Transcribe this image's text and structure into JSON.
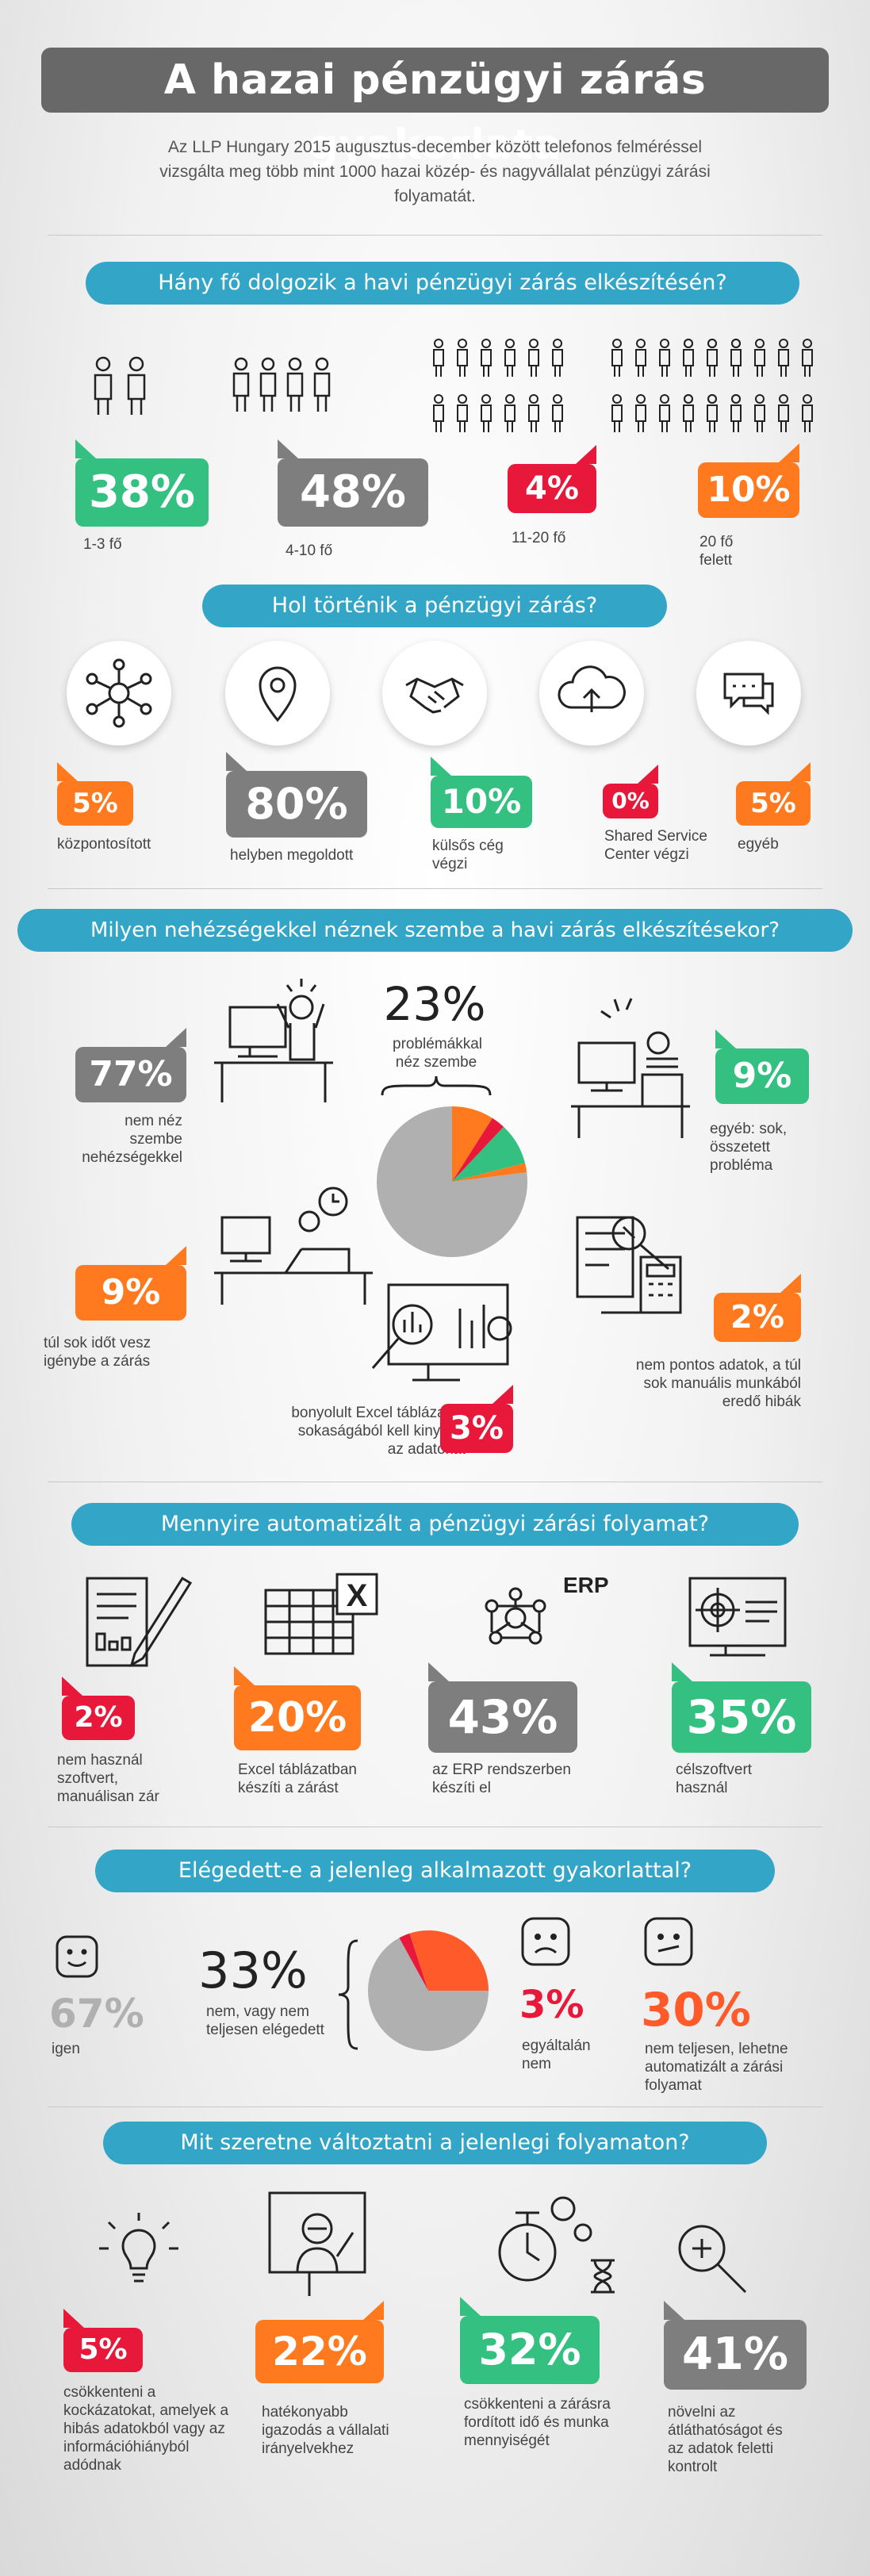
{
  "title": "A hazai pénzügyi zárás gyakorlata",
  "intro": "Az LLP Hungary 2015 augusztus-december között telefonos felméréssel vizsgálta meg több mint 1000 hazai közép- és nagyvállalat pénzügyi zárási folyamatát.",
  "colors": {
    "green": "#33c080",
    "gray": "#7e7e7e",
    "red": "#e8183a",
    "orange": "#ff7a1e",
    "blue": "#33a6c8",
    "title": "#686868"
  },
  "s1": {
    "q": "Hány fő dolgozik a havi pénzügyi zárás elkészítésén?",
    "items": [
      {
        "pct": "38%",
        "label": "1-3 fő"
      },
      {
        "pct": "48%",
        "label": "4-10 fő"
      },
      {
        "pct": "4%",
        "label": "11-20 fő"
      },
      {
        "pct": "10%",
        "label": "20 fő felett"
      }
    ]
  },
  "s2": {
    "q": "Hol történik a pénzügyi zárás?",
    "items": [
      {
        "pct": "5%",
        "label": "központosított",
        "icon": "network-icon"
      },
      {
        "pct": "80%",
        "label": "helyben megoldott",
        "icon": "location-pin-icon"
      },
      {
        "pct": "10%",
        "label": "külsős cég végzi",
        "icon": "handshake-icon"
      },
      {
        "pct": "0%",
        "label": "Shared Service Center végzi",
        "icon": "cloud-upload-icon"
      },
      {
        "pct": "5%",
        "label": "egyéb",
        "icon": "chat-icon"
      }
    ]
  },
  "s3": {
    "q": "Milyen nehézségekkel néznek szembe a havi zárás elkészítésekor?",
    "center_pct": "23%",
    "center_label": "problémákkal néz szembe",
    "items": [
      {
        "pct": "77%",
        "label": "nem néz szembe nehézségekkel"
      },
      {
        "pct": "9%",
        "label": "túl sok időt vesz igénybe a zárás"
      },
      {
        "pct": "3%",
        "label": "bonyolult Excel táblázatok sokaságából kell kinyerni az adatokat"
      },
      {
        "pct": "9%",
        "label": "egyéb: sok, összetett probléma"
      },
      {
        "pct": "2%",
        "label": "nem pontos adatok, a túl sok manuális munkából eredő hibák"
      }
    ],
    "pie": [
      {
        "v": 77,
        "c": "#b0b0b0"
      },
      {
        "v": 9,
        "c": "#ff7a1e"
      },
      {
        "v": 3,
        "c": "#e8183a"
      },
      {
        "v": 9,
        "c": "#33c080"
      },
      {
        "v": 2,
        "c": "#ff7a1e"
      }
    ]
  },
  "s4": {
    "q": "Mennyire automatizált a pénzügyi zárási folyamat?",
    "erp": "ERP",
    "excel": "X",
    "items": [
      {
        "pct": "2%",
        "label": "nem használ szoftvert, manuálisan zár"
      },
      {
        "pct": "20%",
        "label": "Excel táblázatban készíti a zárást"
      },
      {
        "pct": "43%",
        "label": "az ERP rendszerben készíti el"
      },
      {
        "pct": "35%",
        "label": "célszoftvert használ"
      }
    ]
  },
  "s5": {
    "q": "Elégedett-e a jelenleg alkalmazott gyakorlattal?",
    "yes_pct": "67%",
    "yes_label": "igen",
    "center_pct": "33%",
    "center_label": "nem, vagy nem teljesen elégedett",
    "items": [
      {
        "pct": "3%",
        "label": "egyáltalán nem"
      },
      {
        "pct": "30%",
        "label": "nem teljesen, lehetne automatizált a zárási folyamat"
      }
    ],
    "pie": [
      {
        "v": 67,
        "c": "#b0b0b0"
      },
      {
        "v": 3,
        "c": "#e8183a"
      },
      {
        "v": 30,
        "c": "#ff5a2a"
      }
    ]
  },
  "s6": {
    "q": "Mit szeretne változtatni a jelenlegi folyamaton?",
    "items": [
      {
        "pct": "5%",
        "label": "csökkenteni a kockázatokat, amelyek a hibás adatokból vagy az információhiányból adódnak"
      },
      {
        "pct": "22%",
        "label": "hatékonyabb igazodás a vállalati irányelvekhez"
      },
      {
        "pct": "32%",
        "label": "csökkenteni a zárásra fordított idő és munka mennyiségét"
      },
      {
        "pct": "41%",
        "label": "növelni az átláthatóságot és az adatok feletti kontrolt"
      }
    ]
  }
}
